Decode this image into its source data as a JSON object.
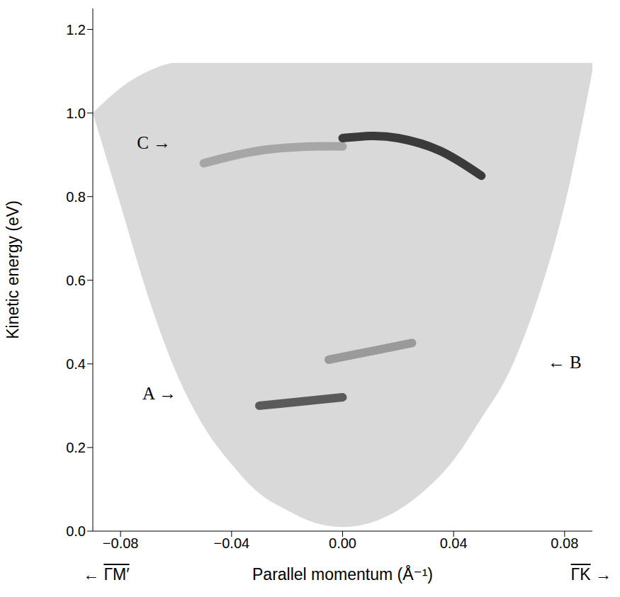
{
  "chart_data": {
    "type": "intensity_map",
    "x_label": "Parallel momentum (Å⁻¹)",
    "y_label": "Kinetic energy (eV)",
    "direction_labels": {
      "left": {
        "arrow": "←",
        "label": "ΓM′"
      },
      "right": {
        "label": "ΓK",
        "arrow": "→"
      }
    },
    "xlim": [
      -0.09,
      0.09
    ],
    "xticks": [
      {
        "value": -0.08,
        "label": "−0.08"
      },
      {
        "value": -0.04,
        "label": "−0.04"
      },
      {
        "value": 0,
        "label": "0.00"
      },
      0.04,
      0.08
    ],
    "ylim": [
      0,
      1.25
    ],
    "yticks": [
      {
        "value": 0,
        "label": "0.0"
      },
      0.2,
      0.4,
      0.6,
      0.8,
      {
        "value": 1,
        "label": "1.0"
      },
      1.2
    ],
    "grid": false,
    "series": [
      {
        "type": "area",
        "color": "#d9d9d9",
        "x": [
          -0.09,
          -0.08,
          -0.07,
          -0.06,
          -0.05,
          -0.04,
          -0.03,
          -0.02,
          -0.01,
          0,
          0.01,
          0.02,
          0.03,
          0.04,
          0.05,
          0.06,
          0.07,
          0.08,
          0.09
        ],
        "low": [
          1.0,
          0.78,
          0.56,
          0.38,
          0.25,
          0.16,
          0.09,
          0.05,
          0.02,
          0.01,
          0.02,
          0.05,
          0.1,
          0.17,
          0.27,
          0.38,
          0.55,
          0.78,
          1.1
        ],
        "high": [
          1.0,
          1.06,
          1.1,
          1.12,
          1.12,
          1.12,
          1.12,
          1.12,
          1.12,
          1.12,
          1.12,
          1.12,
          1.12,
          1.12,
          1.12,
          1.12,
          1.12,
          1.12,
          1.12
        ]
      },
      {
        "type": "line",
        "color": "#a6a6a6",
        "x": [
          -0.05,
          -0.03,
          -0.01,
          0
        ],
        "values": [
          0.88,
          0.91,
          0.92,
          0.92
        ]
      },
      {
        "type": "line",
        "color": "#3a3a3a",
        "x": [
          0,
          0.01,
          0.02,
          0.035,
          0.05
        ],
        "values": [
          0.94,
          0.945,
          0.94,
          0.91,
          0.85
        ]
      },
      {
        "type": "line",
        "color": "#5a5a5a",
        "x": [
          -0.03,
          -0.015,
          0
        ],
        "values": [
          0.3,
          0.31,
          0.32
        ]
      },
      {
        "type": "line",
        "color": "#9a9a9a",
        "x": [
          -0.005,
          0.01,
          0.025
        ],
        "values": [
          0.41,
          0.43,
          0.45
        ]
      }
    ],
    "annotations": [
      {
        "text": "C →",
        "x": -0.068,
        "y": 0.93
      },
      {
        "text": "A →",
        "x": -0.066,
        "y": 0.33
      },
      {
        "text": "← B",
        "x": 0.08,
        "y": 0.405
      }
    ]
  }
}
